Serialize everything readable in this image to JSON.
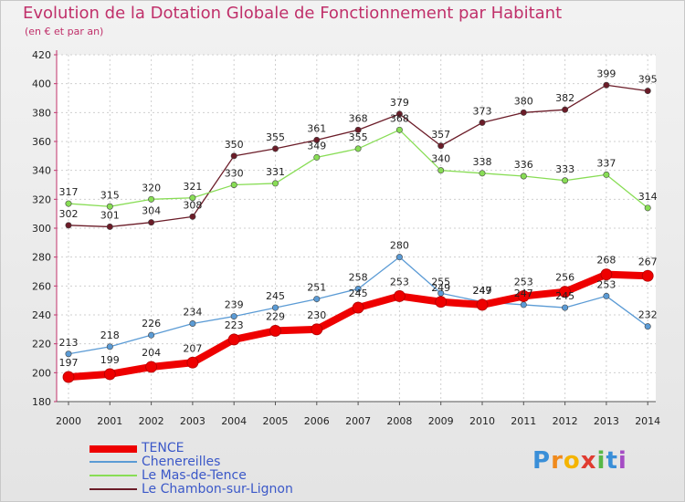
{
  "chart_data": {
    "type": "line",
    "title": "Evolution de la Dotation Globale de Fonctionnement par Habitant",
    "subtitle": "(en € et par an)",
    "categories": [
      "2000",
      "2001",
      "2002",
      "2003",
      "2004",
      "2005",
      "2006",
      "2007",
      "2008",
      "2009",
      "2010",
      "2011",
      "2012",
      "2013",
      "2014"
    ],
    "yticks": [
      180,
      200,
      220,
      240,
      260,
      280,
      300,
      320,
      340,
      360,
      380,
      400,
      420
    ],
    "ylim": [
      180,
      420
    ],
    "grid": true,
    "legend_placement": "bottom-left",
    "series": [
      {
        "name": "TENCE",
        "color": "#ee0000",
        "values": [
          197,
          199,
          204,
          207,
          223,
          229,
          230,
          245,
          253,
          249,
          247,
          253,
          256,
          268,
          267
        ]
      },
      {
        "name": "Chenereilles",
        "color": "#5b9bd5",
        "values": [
          213,
          218,
          226,
          234,
          239,
          245,
          251,
          258,
          280,
          255,
          249,
          247,
          245,
          253,
          232
        ]
      },
      {
        "name": "Le Mas-de-Tence",
        "color": "#88dd55",
        "values": [
          317,
          315,
          320,
          321,
          330,
          331,
          349,
          355,
          368,
          340,
          338,
          336,
          333,
          337,
          314
        ]
      },
      {
        "name": "Le Chambon-sur-Lignon",
        "color": "#6b1c28",
        "values": [
          302,
          301,
          304,
          308,
          350,
          355,
          361,
          368,
          379,
          357,
          373,
          380,
          382,
          399,
          395
        ]
      }
    ]
  },
  "branding": {
    "logo_letters": [
      "P",
      "r",
      "o",
      "x",
      "i",
      "t",
      "i"
    ],
    "logo_colors": [
      "#3a8fd8",
      "#f08a1c",
      "#f4b400",
      "#e03c31",
      "#57b847",
      "#3a8fd8",
      "#a54cc4"
    ]
  }
}
